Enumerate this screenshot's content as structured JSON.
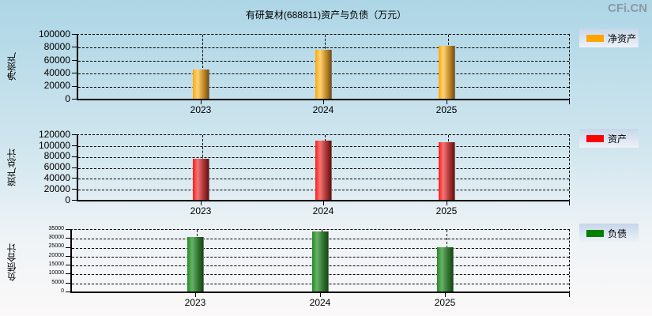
{
  "title": "有研复材(688811)资产与负债（万元）",
  "watermark": "CFi.CN",
  "colors": {
    "net_assets": "#ffa500",
    "assets": "#ff0000",
    "liabilities": "#008000"
  },
  "charts": [
    {
      "ylabel": "净资产",
      "legend": "净资产",
      "ticks": [
        "100000",
        "80000",
        "60000",
        "40000",
        "20000",
        "0"
      ],
      "years": [
        "2023",
        "2024",
        "2025"
      ]
    },
    {
      "ylabel": "资产总计",
      "legend": "资产",
      "ticks": [
        "120000",
        "100000",
        "80000",
        "60000",
        "40000",
        "20000",
        "0"
      ],
      "years": [
        "2023",
        "2024",
        "2025"
      ]
    },
    {
      "ylabel": "负债合计",
      "legend": "负债",
      "ticks": [
        "35000",
        "30000",
        "25000",
        "20000",
        "15000",
        "10000",
        "5000",
        "0"
      ],
      "years": [
        "2023",
        "2024",
        "2025"
      ]
    }
  ],
  "chart_data": [
    {
      "type": "bar",
      "title": "有研复材(688811)资产与负债（万元）",
      "xlabel": "",
      "ylabel": "净资产",
      "categories": [
        "2023",
        "2024",
        "2025"
      ],
      "series": [
        {
          "name": "净资产",
          "values": [
            44600,
            75900,
            81900
          ]
        }
      ],
      "ylim": [
        0,
        100000
      ],
      "grid": true,
      "legend_position": "right"
    },
    {
      "type": "bar",
      "xlabel": "",
      "ylabel": "资产总计",
      "categories": [
        "2023",
        "2024",
        "2025"
      ],
      "series": [
        {
          "name": "资产",
          "values": [
            75700,
            108600,
            105700
          ]
        }
      ],
      "ylim": [
        0,
        120000
      ],
      "grid": true,
      "legend_position": "right"
    },
    {
      "type": "bar",
      "xlabel": "",
      "ylabel": "负债合计",
      "categories": [
        "2023",
        "2024",
        "2025"
      ],
      "series": [
        {
          "name": "负债",
          "values": [
            30600,
            33700,
            24900
          ]
        }
      ],
      "ylim": [
        0,
        35000
      ],
      "grid": true,
      "legend_position": "right"
    }
  ]
}
